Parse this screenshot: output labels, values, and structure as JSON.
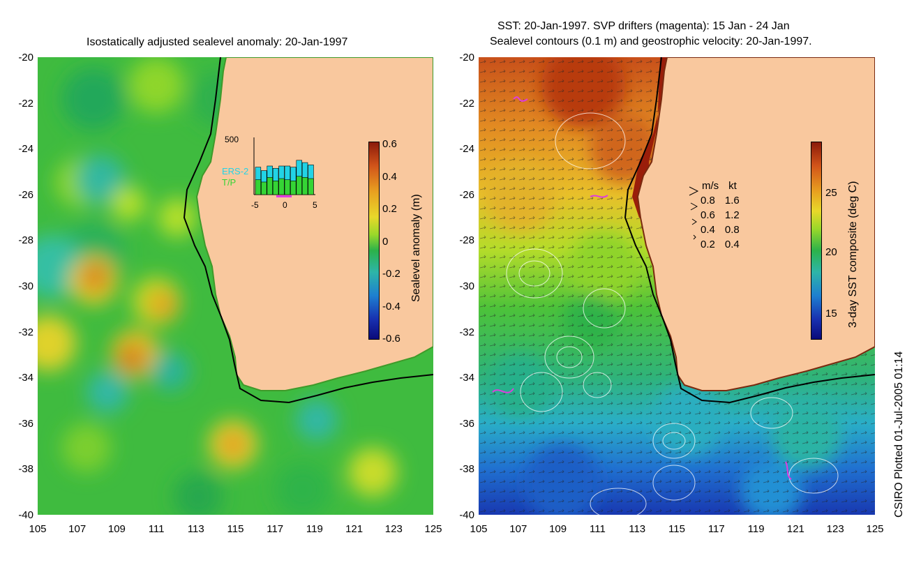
{
  "left_panel": {
    "title": "Isostatically adjusted sealevel anomaly: 20-Jan-1997",
    "y_ticks": [
      "-20",
      "-22",
      "-24",
      "-26",
      "-28",
      "-30",
      "-32",
      "-34",
      "-36",
      "-38",
      "-40"
    ],
    "x_ticks": [
      "105",
      "107",
      "109",
      "111",
      "113",
      "115",
      "117",
      "119",
      "121",
      "123",
      "125"
    ],
    "colorbar": {
      "label": "Sealevel anomaly (m)",
      "ticks": [
        "0.6",
        "0.4",
        "0.2",
        "0",
        "-0.2",
        "-0.4",
        "-0.6"
      ]
    },
    "inset": {
      "ymax": "500",
      "legend_a": "ERS-2",
      "legend_b": "T/P",
      "x_ticks": [
        "-5",
        "0",
        "5"
      ],
      "color_a": "#22d3e6",
      "color_b": "#35d435",
      "bars": [
        240,
        210,
        250,
        230,
        250,
        250,
        240,
        300,
        280,
        260
      ],
      "bars_tp": [
        130,
        110,
        150,
        120,
        140,
        130,
        120,
        160,
        150,
        140
      ]
    }
  },
  "right_panel": {
    "title_line1": "SST: 20-Jan-1997. SVP drifters (magenta): 15 Jan - 24 Jan",
    "title_line2": "Sealevel contours (0.1 m) and geostrophic velocity: 20-Jan-1997.",
    "y_ticks": [
      "-20",
      "-22",
      "-24",
      "-26",
      "-28",
      "-30",
      "-32",
      "-34",
      "-36",
      "-38",
      "-40"
    ],
    "x_ticks": [
      "105",
      "107",
      "109",
      "111",
      "113",
      "115",
      "117",
      "119",
      "121",
      "123",
      "125"
    ],
    "colorbar": {
      "label": "3-day SST composite (deg C)",
      "ticks": [
        "25",
        "20",
        "15"
      ]
    },
    "velocity_legend": {
      "header_ms": "m/s",
      "header_kt": "kt",
      "rows": [
        {
          "ms": "0.8",
          "kt": "1.6"
        },
        {
          "ms": "0.6",
          "kt": "1.2"
        },
        {
          "ms": "0.4",
          "kt": "0.8"
        },
        {
          "ms": "0.2",
          "kt": "0.4"
        }
      ]
    }
  },
  "credit": "CSIRO Plotted 01-Jul-2005 01:14",
  "colors": {
    "land": "#f9c89e",
    "ocean_mid": "#2bb24a"
  }
}
